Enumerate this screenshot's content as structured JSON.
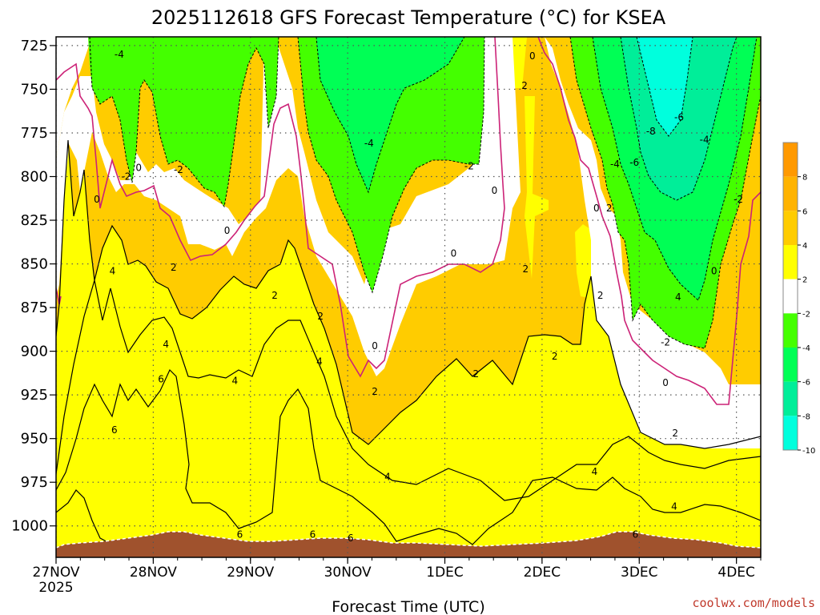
{
  "chart_data": {
    "type": "contour",
    "title": "2025112618 GFS Forecast Temperature (°C) for KSEA",
    "xlabel": "Forecast Time (UTC)",
    "ylabel": "",
    "x_ticks": [
      {
        "label": "27NOV",
        "sublabel": "2025",
        "day": 0
      },
      {
        "label": "28NOV",
        "day": 1
      },
      {
        "label": "29NOV",
        "day": 2
      },
      {
        "label": "30NOV",
        "day": 3
      },
      {
        "label": "1DEC",
        "day": 4
      },
      {
        "label": "2DEC",
        "day": 5
      },
      {
        "label": "3DEC",
        "day": 6
      },
      {
        "label": "4DEC",
        "day": 7
      }
    ],
    "xlim_days": [
      -0.0,
      7.25
    ],
    "y_ticks": [
      725,
      750,
      775,
      800,
      825,
      850,
      875,
      900,
      925,
      950,
      975,
      1000
    ],
    "ylim": [
      1018,
      720
    ],
    "y_reversed": true,
    "colorbar": {
      "levels": [
        10,
        8,
        6,
        4,
        2,
        -2,
        -4,
        -6,
        -8,
        -10
      ],
      "labels": [
        "8",
        "6",
        "4",
        "2",
        "-2",
        "-4",
        "-6",
        "-8",
        "-10"
      ],
      "colors": [
        "#ff9900",
        "#ffb300",
        "#ffcc00",
        "#ffff00",
        "#ffffff",
        "#44ff00",
        "#00ff55",
        "#00ee99",
        "#00ffdd"
      ]
    },
    "contour_labels": [
      {
        "text": "-4",
        "day": 0.65,
        "p": 730
      },
      {
        "text": "-2",
        "day": 0.72,
        "p": 800
      },
      {
        "text": "0",
        "day": 0.85,
        "p": 795
      },
      {
        "text": "-2",
        "day": 1.26,
        "p": 796
      },
      {
        "text": "0",
        "day": 0.42,
        "p": 813
      },
      {
        "text": "0",
        "day": 1.76,
        "p": 831
      },
      {
        "text": "4",
        "day": 0.58,
        "p": 854
      },
      {
        "text": "2",
        "day": 1.21,
        "p": 852
      },
      {
        "text": "4",
        "day": 1.13,
        "p": 896
      },
      {
        "text": "6",
        "day": 1.08,
        "p": 916
      },
      {
        "text": "6",
        "day": 0.6,
        "p": 945
      },
      {
        "text": "4",
        "day": 1.84,
        "p": 917
      },
      {
        "text": "2",
        "day": 2.25,
        "p": 868
      },
      {
        "text": "2",
        "day": 2.72,
        "p": 880
      },
      {
        "text": "4",
        "day": 2.71,
        "p": 906
      },
      {
        "text": "6",
        "day": 1.89,
        "p": 1005
      },
      {
        "text": "6",
        "day": 2.64,
        "p": 1005
      },
      {
        "text": "6",
        "day": 3.03,
        "p": 1007
      },
      {
        "text": "-4",
        "day": 3.22,
        "p": 781
      },
      {
        "text": "0",
        "day": 3.28,
        "p": 897
      },
      {
        "text": "2",
        "day": 3.28,
        "p": 923
      },
      {
        "text": "4",
        "day": 3.41,
        "p": 972
      },
      {
        "text": "-2",
        "day": 4.25,
        "p": 794
      },
      {
        "text": "0",
        "day": 4.09,
        "p": 844
      },
      {
        "text": "2",
        "day": 4.32,
        "p": 913
      },
      {
        "text": "0",
        "day": 4.51,
        "p": 808
      },
      {
        "text": "0",
        "day": 4.9,
        "p": 731
      },
      {
        "text": "2",
        "day": 4.82,
        "p": 748
      },
      {
        "text": "2",
        "day": 4.83,
        "p": 853
      },
      {
        "text": "2",
        "day": 5.13,
        "p": 903
      },
      {
        "text": "0",
        "day": 5.56,
        "p": 818
      },
      {
        "text": "2",
        "day": 5.69,
        "p": 818
      },
      {
        "text": "2",
        "day": 5.6,
        "p": 868
      },
      {
        "text": "4",
        "day": 5.54,
        "p": 969
      },
      {
        "text": "-4",
        "day": 5.75,
        "p": 793
      },
      {
        "text": "-6",
        "day": 5.95,
        "p": 792
      },
      {
        "text": "-8",
        "day": 6.12,
        "p": 774
      },
      {
        "text": "-6",
        "day": 6.41,
        "p": 766
      },
      {
        "text": "-4",
        "day": 6.67,
        "p": 779
      },
      {
        "text": "4",
        "day": 6.4,
        "p": 869
      },
      {
        "text": "-2",
        "day": 6.27,
        "p": 895
      },
      {
        "text": "-2",
        "day": 7.02,
        "p": 813
      },
      {
        "text": "0",
        "day": 6.77,
        "p": 854
      },
      {
        "text": "0",
        "day": 6.27,
        "p": 918
      },
      {
        "text": "2",
        "day": 6.37,
        "p": 947
      },
      {
        "text": "4",
        "day": 6.36,
        "p": 989
      },
      {
        "text": "6",
        "day": 5.96,
        "p": 1005
      }
    ]
  },
  "credit": "coolwx.com/models"
}
